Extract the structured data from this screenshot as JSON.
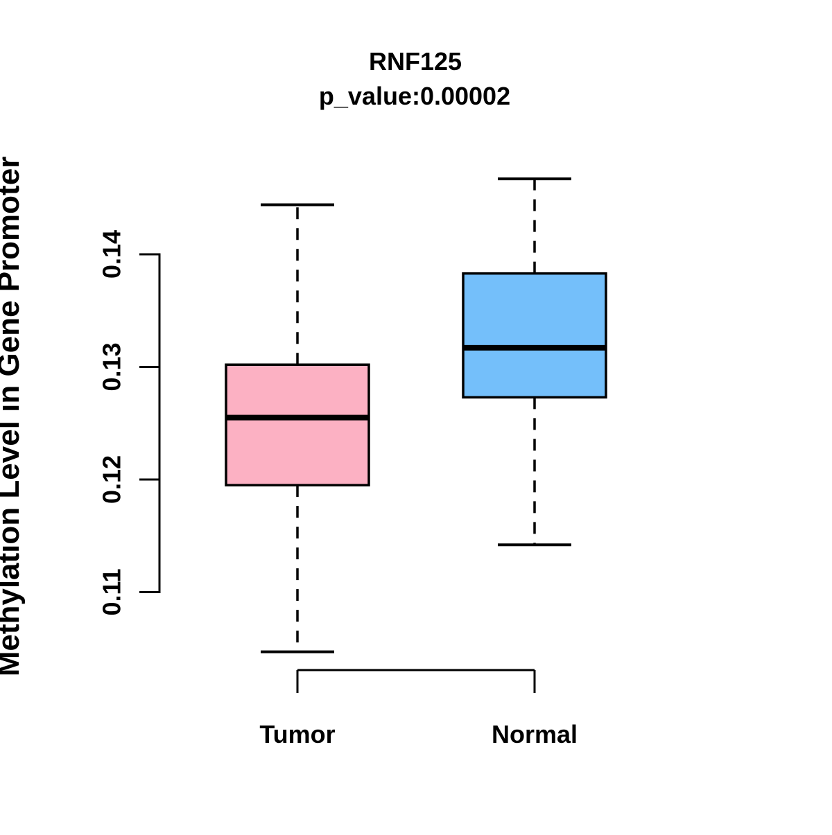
{
  "chart_data": {
    "type": "boxplot",
    "title": "RNF125",
    "subtitle": "p_value:0.00002",
    "p_value": 2e-05,
    "ylabel": "Methylation Level in Gene Promoter",
    "xlabel": "",
    "categories": [
      "Tumor",
      "Normal"
    ],
    "ytick_labels": [
      "0.11",
      "0.12",
      "0.13",
      "0.14"
    ],
    "yticks": [
      0.11,
      0.12,
      0.13,
      0.14
    ],
    "ylim": [
      0.1045,
      0.147
    ],
    "grid": false,
    "legend": "none",
    "series": [
      {
        "name": "Tumor",
        "fill_color": "#FCB1C3",
        "whisker_low": 0.1047,
        "q1": 0.1195,
        "median": 0.1255,
        "q3": 0.1302,
        "whisker_high": 0.1444
      },
      {
        "name": "Normal",
        "fill_color": "#74BFFA",
        "whisker_low": 0.1142,
        "q1": 0.1273,
        "median": 0.1317,
        "q3": 0.1383,
        "whisker_high": 0.1467
      }
    ],
    "line_color": "#000000",
    "background_color": "#FFFFFF"
  }
}
